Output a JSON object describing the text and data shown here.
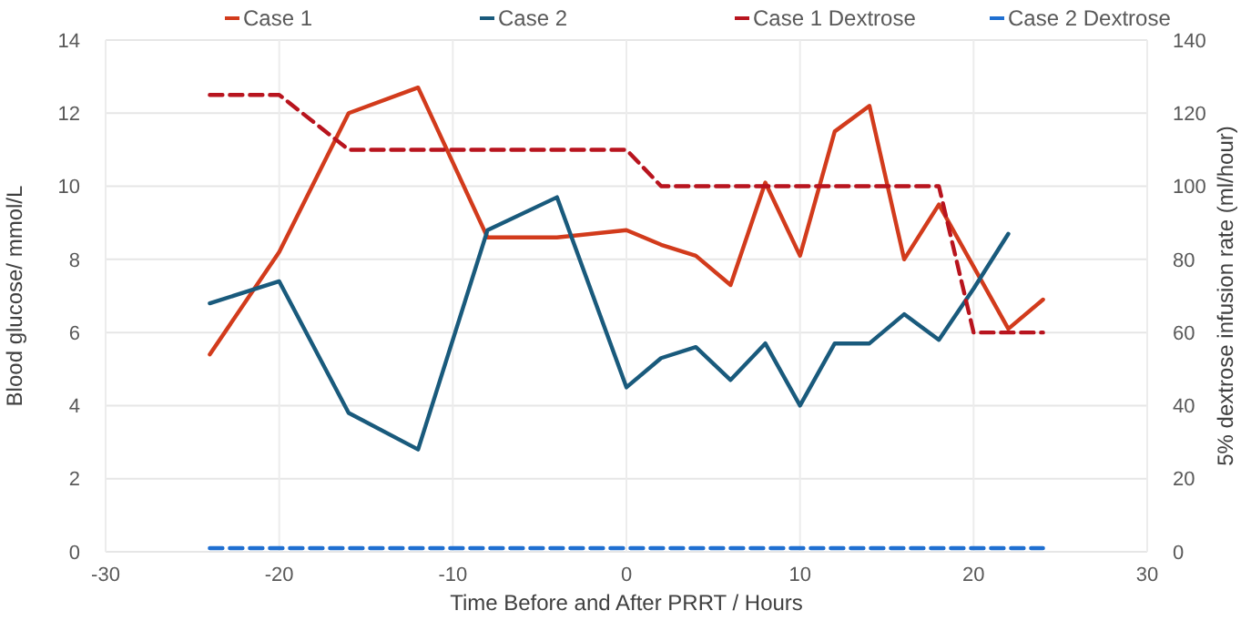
{
  "chart_data": {
    "type": "line",
    "xlabel": "Time Before and After PRRT / Hours",
    "ylabel": "Blood glucose/ mmol/L",
    "y2label": "5% dextrose  infusion rate (ml/hour)",
    "x": [
      -24,
      -20,
      -16,
      -12,
      -8,
      -4,
      0,
      2,
      4,
      6,
      8,
      10,
      12,
      14,
      16,
      18,
      20,
      22,
      24
    ],
    "series": [
      {
        "name": "Case 1",
        "color": "#d23b1c",
        "values": [
          5.4,
          8.2,
          12.0,
          12.7,
          8.6,
          8.6,
          8.8,
          8.4,
          8.1,
          7.3,
          10.1,
          8.1,
          11.5,
          12.2,
          8.0,
          9.5,
          7.8,
          6.1,
          6.9
        ]
      },
      {
        "name": "Case 2",
        "color": "#195a7c",
        "values": [
          6.8,
          7.4,
          3.8,
          2.8,
          8.8,
          9.7,
          4.5,
          5.3,
          5.6,
          4.7,
          5.7,
          4.0,
          5.7,
          5.7,
          6.5,
          5.8,
          7.2,
          8.7,
          null
        ]
      },
      {
        "name": "Case 1 Dextrose",
        "color": "#b8141e",
        "axis": "y2",
        "line_style": "dashed",
        "values": [
          125,
          125,
          110,
          110,
          110,
          110,
          110,
          100,
          100,
          100,
          100,
          100,
          100,
          100,
          100,
          100,
          60,
          60,
          60
        ]
      },
      {
        "name": "Case 2 Dextrose",
        "color": "#1f6fd1",
        "axis": "y2",
        "line_style": "dashed",
        "values": [
          1,
          1,
          1,
          1,
          1,
          1,
          1,
          1,
          1,
          1,
          1,
          1,
          1,
          1,
          1,
          1,
          1,
          1,
          1
        ]
      }
    ],
    "xlim": [
      -30,
      30
    ],
    "xticks": [
      -30,
      -20,
      -10,
      0,
      10,
      20,
      30
    ],
    "ylim": [
      0,
      14
    ],
    "yticks": [
      0,
      2,
      4,
      6,
      8,
      10,
      12,
      14
    ],
    "y2lim": [
      0,
      140
    ],
    "y2ticks": [
      0,
      20,
      40,
      60,
      80,
      100,
      120,
      140
    ],
    "grid": true,
    "legend": "top",
    "marker": "none"
  }
}
